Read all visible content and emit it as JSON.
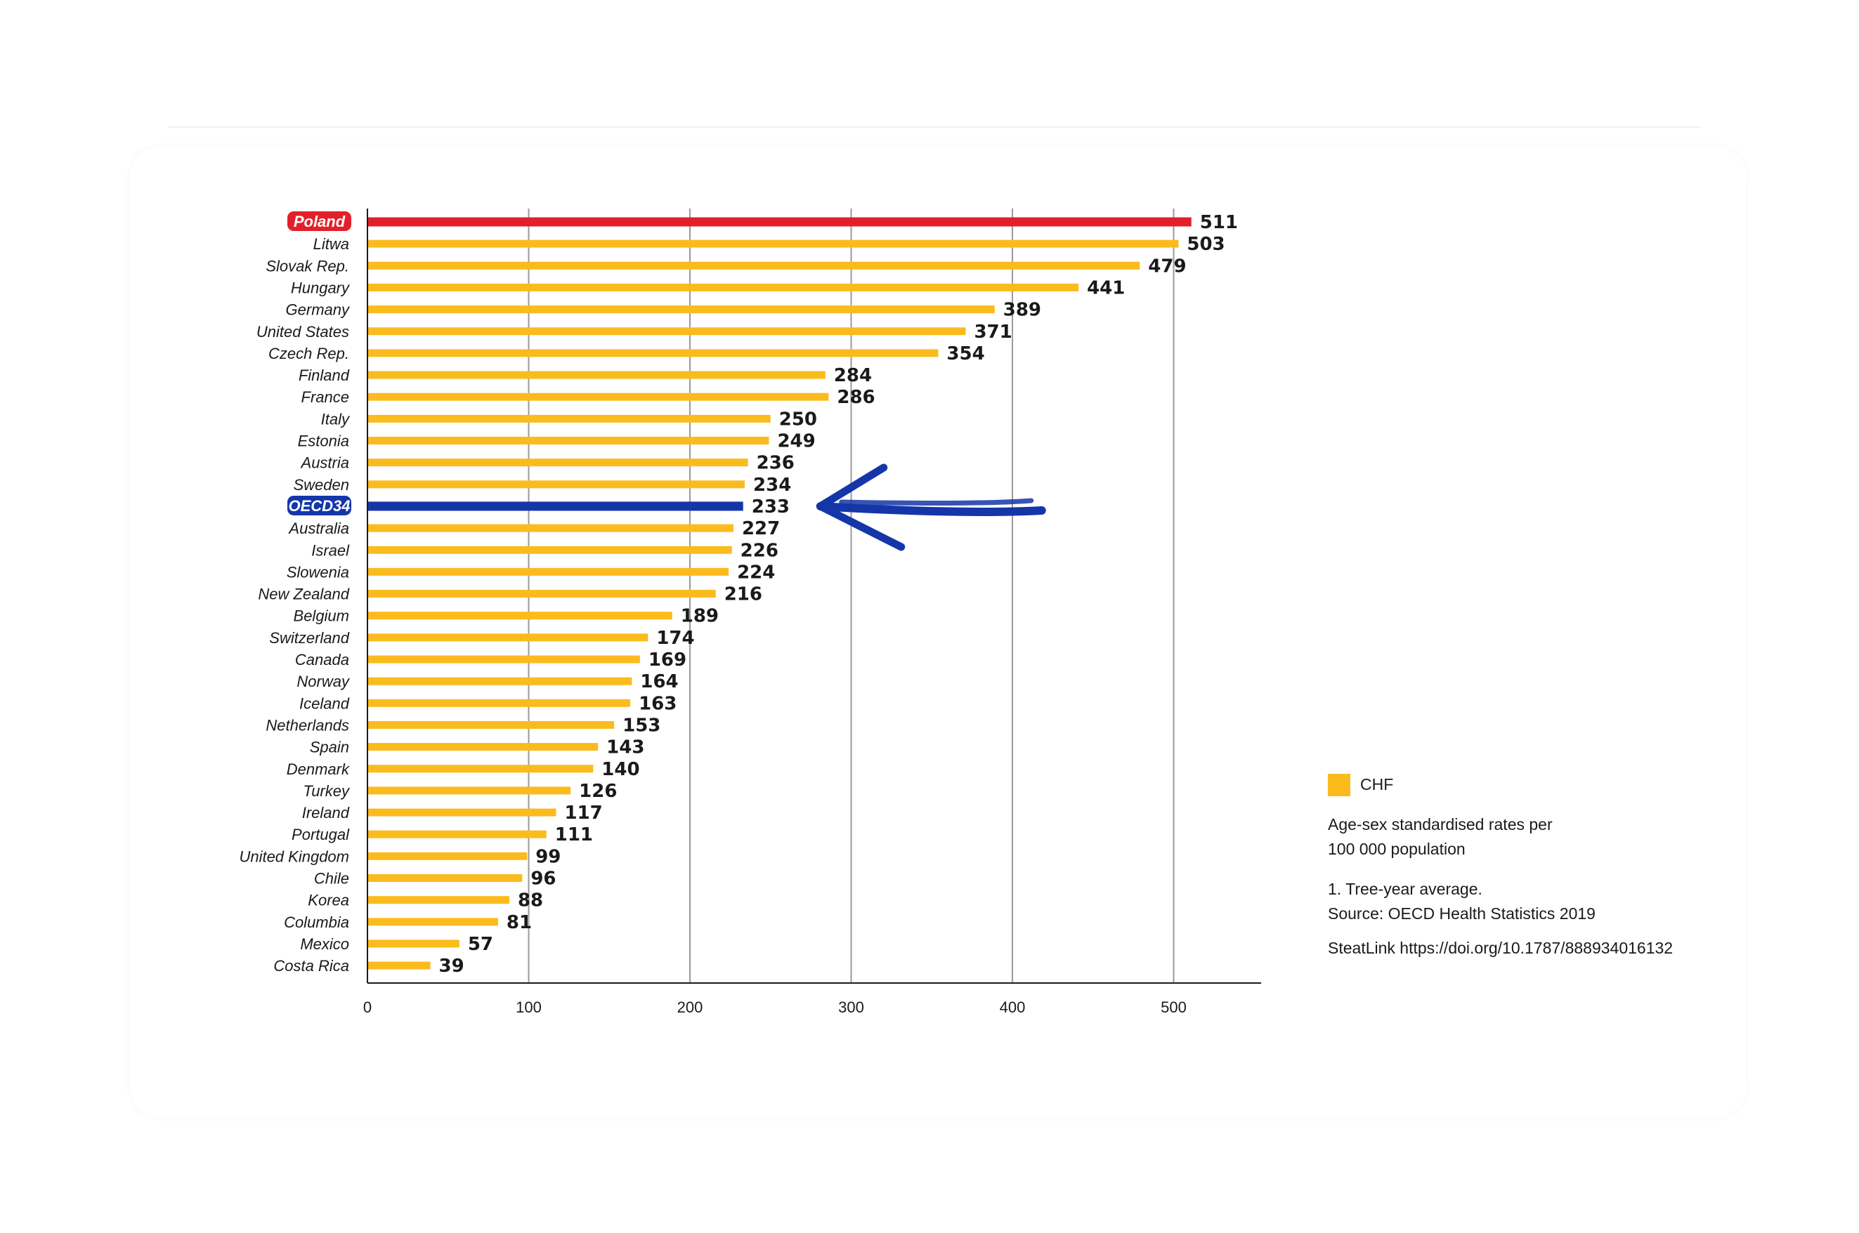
{
  "chart_data": {
    "type": "bar",
    "orientation": "horizontal",
    "categories": [
      "Poland",
      "Litwa",
      "Slovak Rep.",
      "Hungary",
      "Germany",
      "United States",
      "Czech Rep.",
      "Finland",
      "France",
      "Italy",
      "Estonia",
      "Austria",
      "Sweden",
      "OECD34",
      "Australia",
      "Israel",
      "Slowenia",
      "New Zealand",
      "Belgium",
      "Switzerland",
      "Canada",
      "Norway",
      "Iceland",
      "Netherlands",
      "Spain",
      "Denmark",
      "Turkey",
      "Ireland",
      "Portugal",
      "United Kingdom",
      "Chile",
      "Korea",
      "Columbia",
      "Mexico",
      "Costa Rica"
    ],
    "values": [
      511,
      503,
      479,
      441,
      389,
      371,
      354,
      284,
      286,
      250,
      249,
      236,
      234,
      233,
      227,
      226,
      224,
      216,
      189,
      174,
      169,
      164,
      163,
      153,
      143,
      140,
      126,
      117,
      111,
      99,
      96,
      88,
      81,
      57,
      39
    ],
    "highlights": {
      "Poland": "#e3202a",
      "OECD34": "#1436a8"
    },
    "bar_color": "#fbbb1d",
    "xlim": [
      0,
      550
    ],
    "xticks": [
      0,
      100,
      200,
      300,
      400,
      500
    ],
    "grid": "vertical",
    "annotation": "arrow pointing at OECD34",
    "legend": {
      "position": "right",
      "label": "CHF",
      "color": "#fbbb1d"
    }
  },
  "notes": {
    "rates_line1": "Age-sex standardised rates per",
    "rates_line2": "100 000 population",
    "footnote": "1. Tree-year average.",
    "source": "Source: OECD Health Statistics 2019",
    "link": "SteatLink https://doi.org/10.1787/888934016132"
  }
}
